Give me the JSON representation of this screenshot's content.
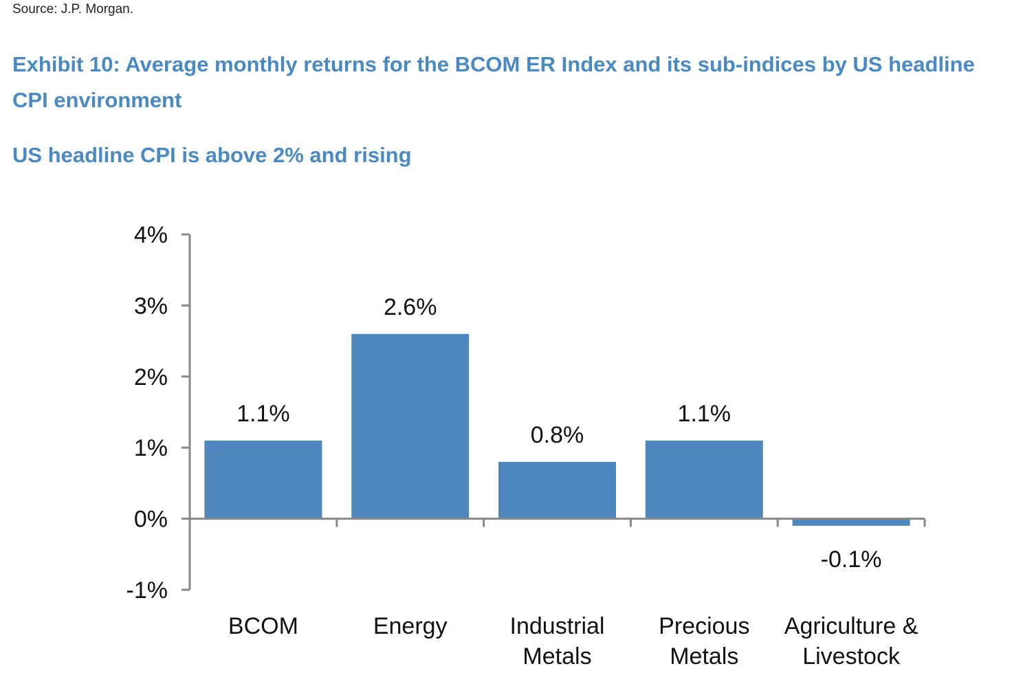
{
  "source": "Source: J.P. Morgan.",
  "title": "Exhibit 10: Average monthly returns for the BCOM ER Index and its sub-indices by US headline CPI environment",
  "subtitle": "US headline CPI is above 2% and rising",
  "chart_data": {
    "type": "bar",
    "categories": [
      [
        "BCOM"
      ],
      [
        "Energy"
      ],
      [
        "Industrial",
        "Metals"
      ],
      [
        "Precious",
        "Metals"
      ],
      [
        "Agriculture &",
        "Livestock"
      ]
    ],
    "values": [
      1.1,
      2.6,
      0.8,
      1.1,
      -0.1
    ],
    "data_labels": [
      "1.1%",
      "2.6%",
      "0.8%",
      "1.1%",
      "-0.1%"
    ],
    "ylim": [
      -1,
      4
    ],
    "yticks": [
      -1,
      0,
      1,
      2,
      3,
      4
    ],
    "ytick_labels": [
      "-1%",
      "0%",
      "1%",
      "2%",
      "3%",
      "4%"
    ],
    "xlabel": "",
    "ylabel": "",
    "grid": false,
    "bar_color": "#4f88be",
    "axis_color": "#888888"
  }
}
